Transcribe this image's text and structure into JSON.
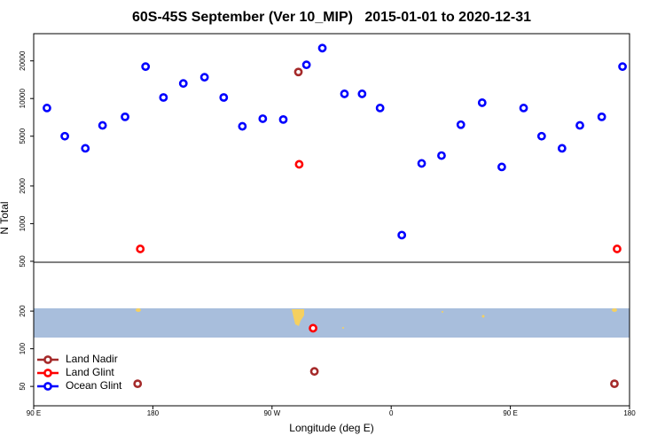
{
  "chart_data": {
    "type": "scatter",
    "title": "60S-45S September (Ver 10_MIP)   2015-01-01 to 2020-12-31",
    "x_label": "Longitude (deg E)",
    "y_label": "N Total",
    "log_y": true,
    "legend": "bottom-left",
    "xlim": [
      90,
      540
    ],
    "xticks": [
      {
        "value": 90,
        "label": "90 E"
      },
      {
        "value": 180,
        "label": "180"
      },
      {
        "value": 270,
        "label": "90 W"
      },
      {
        "value": 360,
        "label": "0"
      },
      {
        "value": 450,
        "label": "90 E"
      },
      {
        "value": 540,
        "label": "180"
      }
    ],
    "ylim": [
      35,
      33000
    ],
    "yticks": [
      50,
      100,
      200,
      500,
      1000,
      2000,
      5000,
      10000,
      20000
    ],
    "series": [
      {
        "name": "Land Nadir",
        "color": "#a52a2a",
        "x": [
          289.9,
          168.5,
          302,
          528.6
        ],
        "values": [
          16300,
          52.5,
          65.9,
          52.5
        ]
      },
      {
        "name": "Land Glint",
        "color": "#ff0000",
        "x": [
          170.5,
          290.5,
          301,
          530.6
        ],
        "values": [
          628,
          2980,
          146,
          628
        ]
      },
      {
        "name": "Ocean Glint",
        "color": "#0000ff",
        "x": [
          100,
          113.5,
          129,
          142,
          159,
          174.5,
          188,
          203,
          219,
          233.5,
          247.6,
          263,
          278.5,
          296,
          308,
          324.7,
          338,
          351.6,
          368,
          383,
          398,
          412.6,
          428.7,
          443.5,
          460,
          473.6,
          489,
          502.5,
          519,
          534.7
        ],
        "values": [
          8400,
          5000,
          4000,
          6100,
          7140,
          18000,
          10200,
          13200,
          14800,
          10200,
          6000,
          6900,
          6800,
          18600,
          25300,
          10900,
          10900,
          8400,
          810,
          3030,
          3500,
          6180,
          9260,
          2840,
          8400,
          5000,
          4000,
          6100,
          7140,
          18000
        ]
      }
    ]
  }
}
